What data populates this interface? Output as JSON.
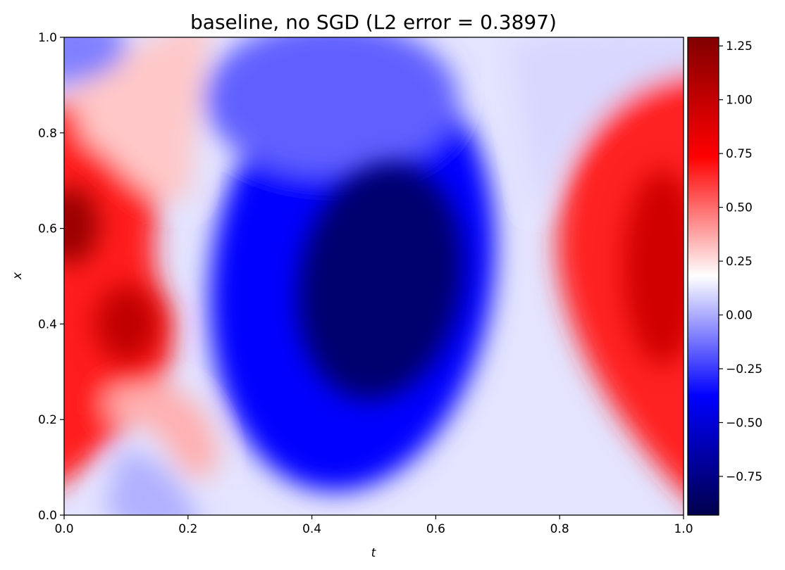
{
  "chart_data": {
    "type": "heatmap",
    "title": "baseline, no SGD (L2 error = 0.3897)",
    "xlabel": "t",
    "ylabel": "x",
    "xlim": [
      0,
      1
    ],
    "ylim": [
      0,
      1
    ],
    "x_ticks": [
      "0.0",
      "0.2",
      "0.4",
      "0.6",
      "0.8",
      "1.0"
    ],
    "y_ticks": [
      "0.0",
      "0.2",
      "0.4",
      "0.6",
      "0.8",
      "1.0"
    ],
    "colormap": "seismic",
    "colorbar": {
      "range": [
        -0.93,
        1.29
      ],
      "ticks": [
        1.25,
        1.0,
        0.75,
        0.5,
        0.25,
        0.0,
        -0.25,
        -0.5,
        -0.75
      ],
      "tick_labels": [
        "1.25",
        "1.00",
        "0.75",
        "0.50",
        "0.25",
        "0.00",
        "−0.25",
        "−0.50",
        "−0.75"
      ],
      "color_stops": [
        "#00004c",
        "#0000ff",
        "#ffffff",
        "#ff0000",
        "#800000"
      ]
    },
    "features": [
      {
        "t": 0.0,
        "x": 0.6,
        "value": 1.25
      },
      {
        "t": 0.08,
        "x": 0.4,
        "value": 1.1
      },
      {
        "t": 0.52,
        "x": 0.5,
        "value": -0.92
      },
      {
        "t": 0.95,
        "x": 0.5,
        "value": 1.0
      }
    ]
  }
}
